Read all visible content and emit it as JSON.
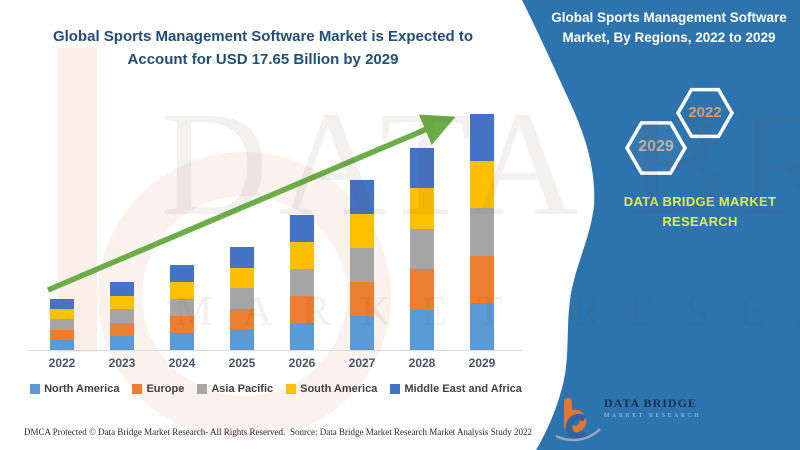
{
  "left_title": "Global Sports Management Software Market is Expected to Account for USD 17.65 Billion by 2029",
  "right_panel": {
    "bg_color": "#2d74ae",
    "heading": "Global Sports Management Software Market, By Regions, 2022 to 2029",
    "hexagon_back_label": "2029",
    "hexagon_front_label": "2022",
    "brand_text": "DATA BRIDGE MARKET RESEARCH",
    "brand_text_color": "#dff23b"
  },
  "logo": {
    "line1": "DATA BRIDGE",
    "line2": "MARKET RESEARCH"
  },
  "watermark": {
    "line1": "DATA BRIDGE",
    "line2": "MARKET RESEARCH"
  },
  "footer": {
    "dmca": "DMCA Protected © Data Bridge Market Research- All Rights Reserved.",
    "source": "Source: Data Bridge Market Research Market Analysis Study 2022"
  },
  "chart_data": {
    "type": "bar",
    "stacked": true,
    "title": "Global Sports Management Software Market is Expected to Account for USD 17.65 Billion by 2029",
    "unit": "USD Billion",
    "categories": [
      "2022",
      "2023",
      "2024",
      "2025",
      "2026",
      "2027",
      "2028",
      "2029"
    ],
    "totals": [
      3.8,
      5.1,
      6.4,
      7.7,
      10.1,
      12.7,
      15.1,
      17.65
    ],
    "series": [
      {
        "name": "North America",
        "color": "#5b9bd5",
        "values": [
          0.76,
          1.02,
          1.28,
          1.54,
          2.02,
          2.54,
          3.02,
          3.53
        ]
      },
      {
        "name": "Europe",
        "color": "#ed7d31",
        "values": [
          0.76,
          1.02,
          1.28,
          1.54,
          2.02,
          2.54,
          3.02,
          3.53
        ]
      },
      {
        "name": "Asia Pacific",
        "color": "#a5a5a5",
        "values": [
          0.76,
          1.02,
          1.28,
          1.54,
          2.02,
          2.54,
          3.02,
          3.53
        ]
      },
      {
        "name": "South America",
        "color": "#ffc000",
        "values": [
          0.76,
          1.02,
          1.28,
          1.54,
          2.02,
          2.54,
          3.02,
          3.53
        ]
      },
      {
        "name": "Middle East and Africa",
        "color": "#4472c4",
        "values": [
          0.76,
          1.02,
          1.28,
          1.54,
          2.02,
          2.54,
          3.02,
          3.53
        ]
      }
    ],
    "y_axis_visible": false,
    "grid": false,
    "legend_position": "bottom",
    "trend_arrow_color": "#6bae47",
    "annotation_final_value": "USD 17.65 Billion by 2029"
  }
}
